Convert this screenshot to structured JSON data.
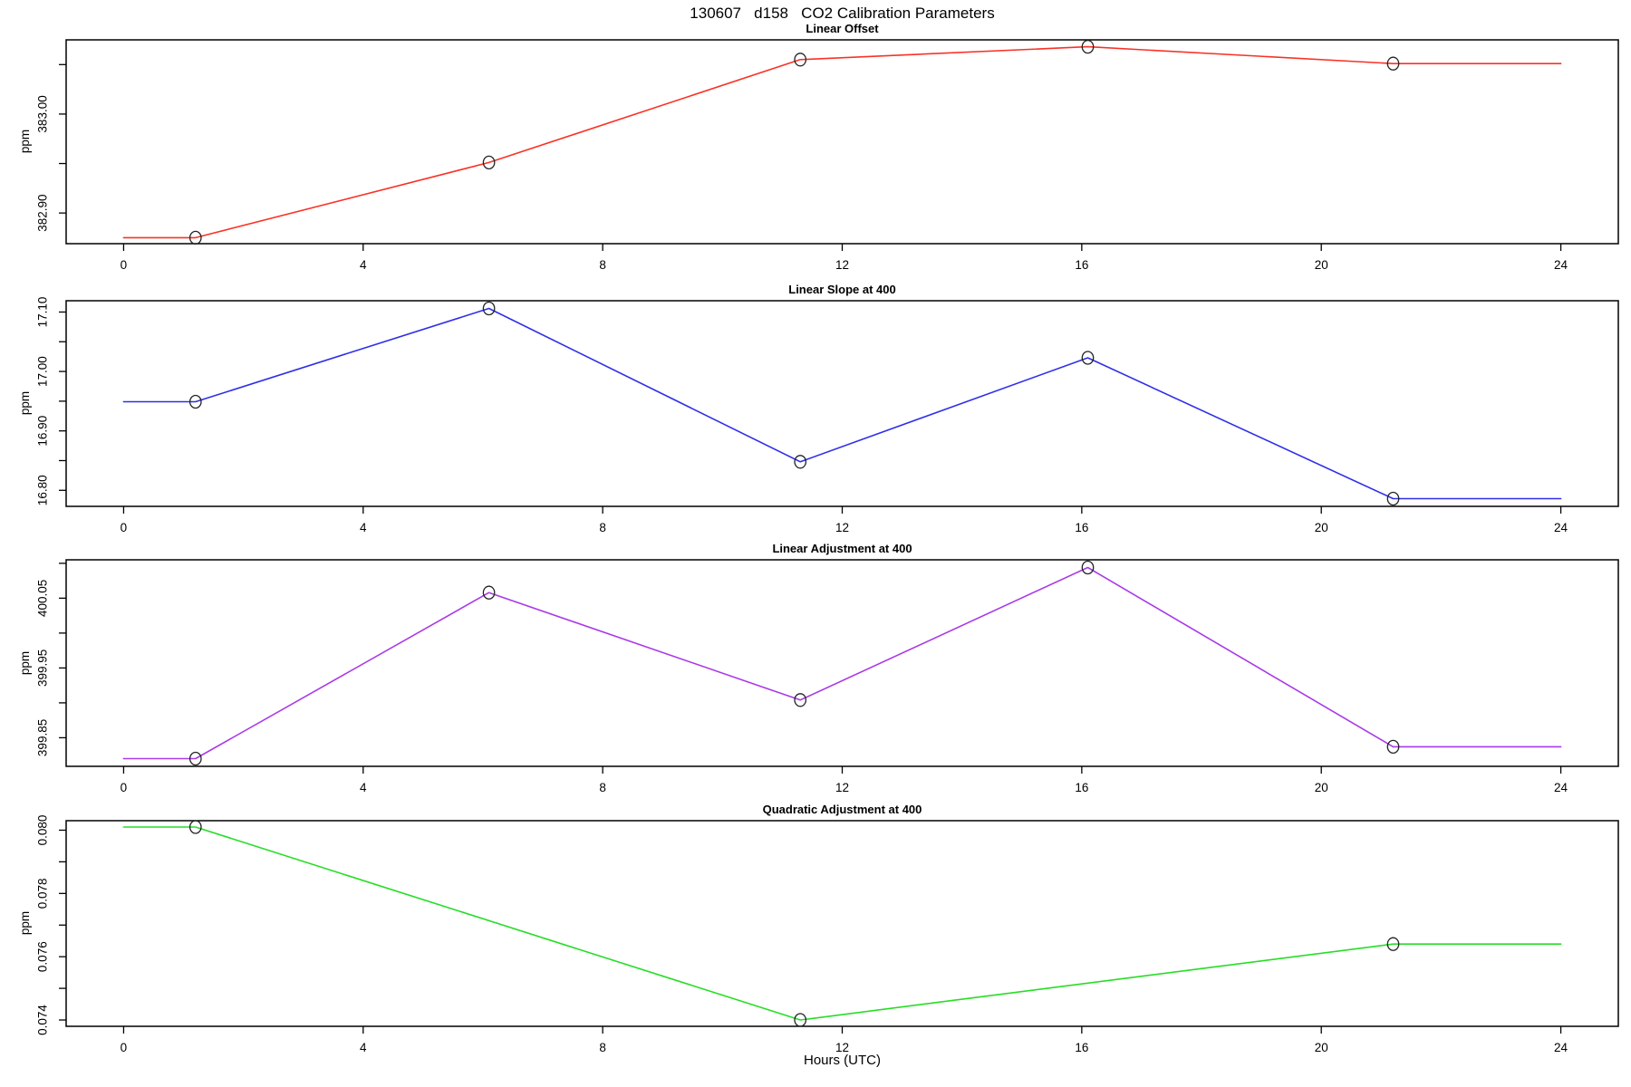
{
  "page_title": "130607   d158   CO2 Calibration Parameters",
  "figure": {
    "xlabel": "Hours (UTC)",
    "background": "#ffffff",
    "axis_color": "#000000",
    "marker_color": "#222222"
  },
  "chart_data": [
    {
      "type": "line",
      "title": "Linear Offset",
      "ylabel": "ppm",
      "color": "#f93226",
      "x": [
        0,
        1.2,
        6.1,
        11.3,
        16.1,
        21.2,
        24
      ],
      "y": [
        382.875,
        382.875,
        382.951,
        383.055,
        383.068,
        383.051,
        383.051
      ],
      "marker_x": [
        1.2,
        6.1,
        11.3,
        16.1,
        21.2
      ],
      "marker_y": [
        382.875,
        382.951,
        383.055,
        383.068,
        383.051
      ],
      "xlim": [
        -0.96,
        24.96
      ],
      "ylim": [
        382.869,
        383.075
      ],
      "yticks": [
        382.9,
        382.95,
        383.0,
        383.05
      ],
      "ytick_labels": [
        "382.90",
        "",
        "383.00",
        ""
      ],
      "xticks": [
        0,
        4,
        8,
        12,
        16,
        20,
        24
      ],
      "xtick_labels": [
        "0",
        "4",
        "8",
        "12",
        "16",
        "20",
        "24"
      ],
      "grid": false,
      "legend": null
    },
    {
      "type": "line",
      "title": "Linear Slope at 400",
      "ylabel": "ppm",
      "color": "#2f2fe8",
      "x": [
        0,
        1.2,
        6.1,
        11.3,
        16.1,
        21.2,
        24
      ],
      "y": [
        16.949,
        16.949,
        17.106,
        16.848,
        17.023,
        16.786,
        16.786
      ],
      "marker_x": [
        1.2,
        6.1,
        11.3,
        16.1,
        21.2
      ],
      "marker_y": [
        16.949,
        17.106,
        16.848,
        17.023,
        16.786
      ],
      "xlim": [
        -0.96,
        24.96
      ],
      "ylim": [
        16.773,
        17.119
      ],
      "yticks": [
        16.8,
        16.85,
        16.9,
        16.95,
        17.0,
        17.05,
        17.1
      ],
      "ytick_labels": [
        "16.80",
        "",
        "16.90",
        "",
        "17.00",
        "",
        "17.10"
      ],
      "xticks": [
        0,
        4,
        8,
        12,
        16,
        20,
        24
      ],
      "xtick_labels": [
        "0",
        "4",
        "8",
        "12",
        "16",
        "20",
        "24"
      ],
      "grid": false,
      "legend": null
    },
    {
      "type": "line",
      "title": "Linear Adjustment at 400",
      "ylabel": "ppm",
      "color": "#a93ae8",
      "x": [
        0,
        1.2,
        6.1,
        11.3,
        16.1,
        21.2,
        24
      ],
      "y": [
        399.82,
        399.82,
        400.058,
        399.904,
        400.094,
        399.837,
        399.837
      ],
      "marker_x": [
        1.2,
        6.1,
        11.3,
        16.1,
        21.2
      ],
      "marker_y": [
        399.82,
        400.058,
        399.904,
        400.094,
        399.837
      ],
      "xlim": [
        -0.96,
        24.96
      ],
      "ylim": [
        399.809,
        400.105
      ],
      "yticks": [
        399.85,
        399.9,
        399.95,
        400.0,
        400.05,
        400.1
      ],
      "ytick_labels": [
        "399.85",
        "",
        "399.95",
        "",
        "400.05",
        ""
      ],
      "xticks": [
        0,
        4,
        8,
        12,
        16,
        20,
        24
      ],
      "xtick_labels": [
        "0",
        "4",
        "8",
        "12",
        "16",
        "20",
        "24"
      ],
      "grid": false,
      "legend": null
    },
    {
      "type": "line",
      "title": "Quadratic Adjustment at 400",
      "ylabel": "ppm",
      "color": "#26dd26",
      "x": [
        0,
        1.2,
        11.3,
        21.2,
        24
      ],
      "y": [
        0.0801,
        0.0801,
        0.074,
        0.0764,
        0.0764
      ],
      "marker_x": [
        1.2,
        11.3,
        21.2
      ],
      "marker_y": [
        0.0801,
        0.074,
        0.0764
      ],
      "xlim": [
        -0.96,
        24.96
      ],
      "ylim": [
        0.0738,
        0.0803
      ],
      "yticks": [
        0.074,
        0.075,
        0.076,
        0.077,
        0.078,
        0.079,
        0.08
      ],
      "ytick_labels": [
        "0.074",
        "",
        "0.076",
        "",
        "0.078",
        "",
        "0.080"
      ],
      "xticks": [
        0,
        4,
        8,
        12,
        16,
        20,
        24
      ],
      "xtick_labels": [
        "0",
        "4",
        "8",
        "12",
        "16",
        "20",
        "24"
      ],
      "grid": false,
      "legend": null
    }
  ]
}
